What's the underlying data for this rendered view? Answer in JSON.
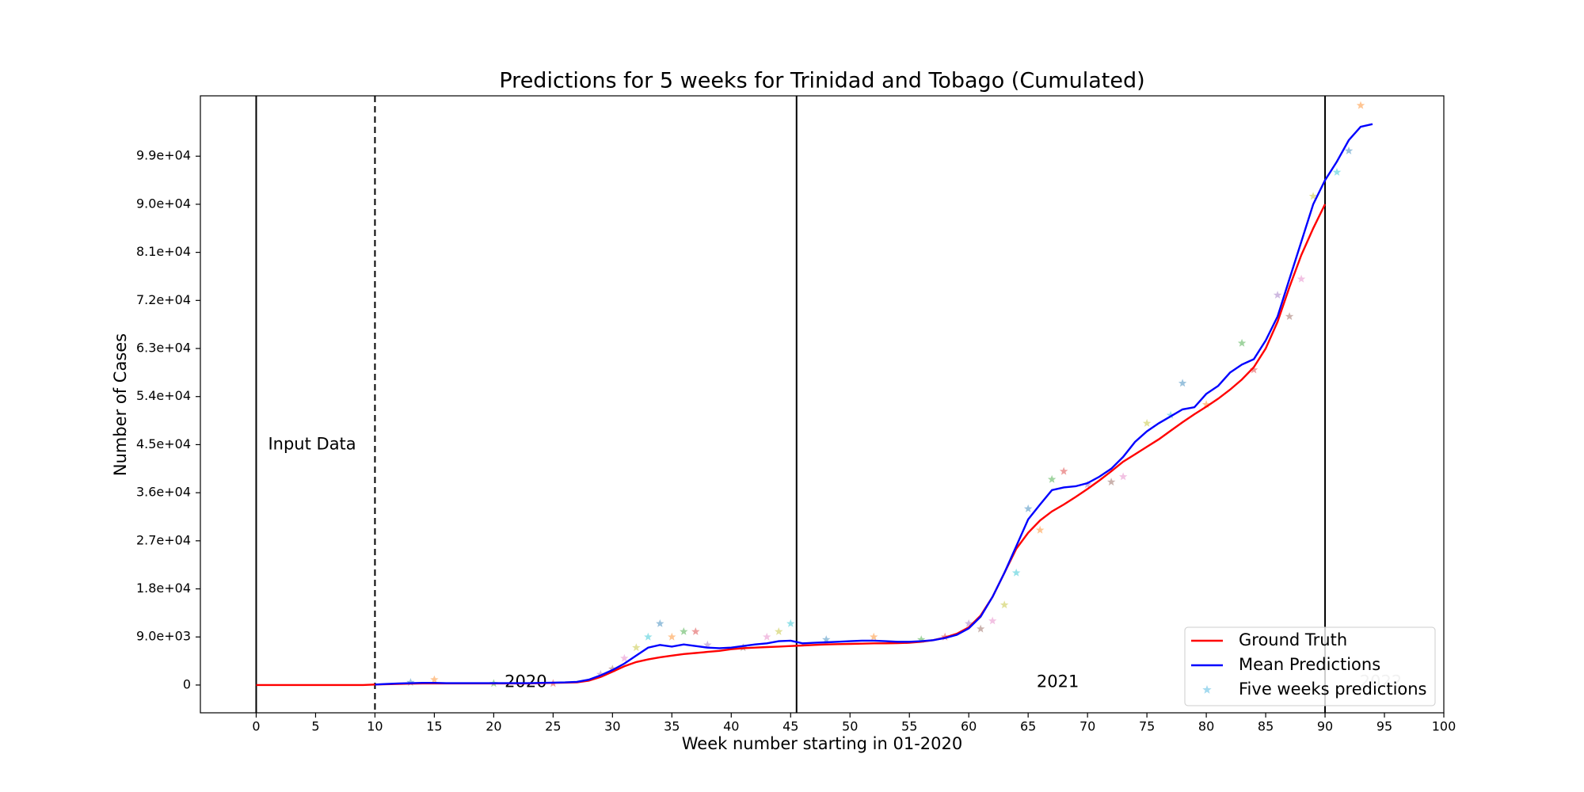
{
  "chart_data": {
    "type": "line",
    "title": "Predictions for 5 weeks for Trinidad and Tobago (Cumulated)",
    "x_label": "Week number starting in 01-2020",
    "y_label": "Number of Cases",
    "xlim": [
      -4.7,
      100
    ],
    "ylim": [
      -5200,
      110300
    ],
    "xticks": [
      0,
      5,
      10,
      15,
      20,
      25,
      30,
      35,
      40,
      45,
      50,
      55,
      60,
      65,
      70,
      75,
      80,
      85,
      90,
      95,
      100
    ],
    "yticks": [
      0,
      {
        "value": 9000,
        "label": "9.0e+03"
      },
      {
        "value": 18000,
        "label": "1.8e+04"
      },
      {
        "value": 27000,
        "label": "2.7e+04"
      },
      {
        "value": 36000,
        "label": "3.6e+04"
      },
      {
        "value": 45000,
        "label": "4.5e+04"
      },
      {
        "value": 54000,
        "label": "5.4e+04"
      },
      {
        "value": 63000,
        "label": "6.3e+04"
      },
      {
        "value": 72000,
        "label": "7.2e+04"
      },
      {
        "value": 81000,
        "label": "8.1e+04"
      },
      {
        "value": 90000,
        "label": "9.0e+04"
      },
      {
        "value": 99000,
        "label": "9.9e+04"
      }
    ],
    "grid": false,
    "legend": "lower right",
    "vlines": [
      {
        "x": 0,
        "style": "solid"
      },
      {
        "x": 10,
        "style": "dashed"
      },
      {
        "x": 45.5,
        "style": "solid"
      },
      {
        "x": 90,
        "style": "solid"
      }
    ],
    "annotations": [
      "Input Data",
      "2020",
      "2021",
      "2022"
    ],
    "series": [
      {
        "name": "Ground Truth",
        "color": "#ff0000",
        "kind": "line",
        "x": [
          0,
          1,
          2,
          3,
          4,
          5,
          6,
          7,
          8,
          9,
          10,
          11,
          12,
          13,
          14,
          15,
          16,
          17,
          18,
          19,
          20,
          21,
          22,
          23,
          24,
          25,
          26,
          27,
          28,
          29,
          30,
          31,
          32,
          33,
          34,
          35,
          36,
          37,
          38,
          39,
          40,
          41,
          42,
          43,
          44,
          45,
          46,
          47,
          48,
          49,
          50,
          51,
          52,
          53,
          54,
          55,
          56,
          57,
          58,
          59,
          60,
          61,
          62,
          63,
          64,
          65,
          66,
          67,
          68,
          69,
          70,
          71,
          72,
          73,
          74,
          75,
          76,
          77,
          78,
          79,
          80,
          81,
          82,
          83,
          84,
          85,
          86,
          87,
          88,
          89,
          90
        ],
        "values": [
          0,
          0,
          0,
          0,
          0,
          0,
          0,
          0,
          0,
          0,
          100,
          150,
          200,
          250,
          300,
          300,
          300,
          300,
          300,
          300,
          300,
          300,
          300,
          300,
          350,
          400,
          450,
          500,
          800,
          1500,
          2500,
          3500,
          4300,
          4800,
          5200,
          5500,
          5800,
          6000,
          6200,
          6400,
          6700,
          6900,
          7000,
          7100,
          7200,
          7300,
          7400,
          7500,
          7600,
          7650,
          7700,
          7750,
          7800,
          7800,
          7850,
          7900,
          8100,
          8400,
          8900,
          9600,
          10800,
          13000,
          16500,
          21000,
          25500,
          28500,
          30800,
          32500,
          33800,
          35200,
          36700,
          38300,
          40000,
          41800,
          43200,
          44600,
          46000,
          47600,
          49200,
          50700,
          52100,
          53600,
          55300,
          57200,
          59500,
          63000,
          68000,
          74500,
          80500,
          85500,
          90000
        ]
      },
      {
        "name": "Mean Predictions",
        "color": "#0000ff",
        "kind": "line",
        "x": [
          10,
          11,
          12,
          13,
          14,
          15,
          16,
          17,
          18,
          19,
          20,
          21,
          22,
          23,
          24,
          25,
          26,
          27,
          28,
          29,
          30,
          31,
          32,
          33,
          34,
          35,
          36,
          37,
          38,
          39,
          40,
          41,
          42,
          43,
          44,
          45,
          46,
          47,
          48,
          49,
          50,
          51,
          52,
          53,
          54,
          55,
          56,
          57,
          58,
          59,
          60,
          61,
          62,
          63,
          64,
          65,
          66,
          67,
          68,
          69,
          70,
          71,
          72,
          73,
          74,
          75,
          76,
          77,
          78,
          79,
          80,
          81,
          82,
          83,
          84,
          85,
          86,
          87,
          88,
          89,
          90,
          91,
          92,
          93,
          94
        ],
        "values": [
          100,
          200,
          300,
          350,
          400,
          400,
          350,
          350,
          350,
          350,
          350,
          350,
          350,
          350,
          400,
          450,
          500,
          600,
          1000,
          1800,
          2800,
          4000,
          5500,
          7000,
          7500,
          7200,
          7600,
          7300,
          7000,
          6900,
          7000,
          7300,
          7600,
          7800,
          8200,
          8300,
          7800,
          7900,
          8000,
          8100,
          8200,
          8300,
          8300,
          8200,
          8100,
          8100,
          8200,
          8400,
          8800,
          9400,
          10600,
          12800,
          16500,
          21000,
          26000,
          31000,
          33800,
          36500,
          37000,
          37200,
          37800,
          39000,
          40500,
          42700,
          45500,
          47500,
          49000,
          50300,
          51600,
          52000,
          54500,
          56000,
          58500,
          60000,
          61000,
          64500,
          69000,
          76000,
          83000,
          90000,
          94500,
          98000,
          102000,
          104500,
          105000
        ]
      },
      {
        "name": "Five weeks predictions",
        "color": "#7ecbe8",
        "kind": "scatter",
        "palette": [
          "#1f77b4",
          "#ff7f0e",
          "#2ca02c",
          "#d62728",
          "#9467bd",
          "#8c564b",
          "#e377c2",
          "#bcbd22",
          "#17becf"
        ],
        "x": [
          13,
          15,
          20,
          25,
          29,
          30,
          31,
          32,
          33,
          34,
          35,
          36,
          37,
          38,
          41,
          43,
          44,
          45,
          48,
          52,
          56,
          58,
          60,
          61,
          62,
          63,
          64,
          65,
          66,
          67,
          68,
          70,
          72,
          73,
          75,
          77,
          78,
          80,
          83,
          84,
          86,
          87,
          88,
          89,
          91,
          92,
          93
        ],
        "values": [
          500,
          1000,
          300,
          300,
          2000,
          3000,
          5000,
          7000,
          9000,
          11500,
          9000,
          10000,
          10000,
          7500,
          7000,
          9000,
          10000,
          11500,
          8500,
          9000,
          8500,
          9000,
          11500,
          10500,
          12000,
          15000,
          21000,
          33000,
          29000,
          38500,
          40000,
          37500,
          38000,
          39000,
          49000,
          50500,
          56500,
          52500,
          64000,
          59000,
          73000,
          69000,
          76000,
          91500,
          96000,
          100000,
          108500
        ]
      }
    ]
  }
}
